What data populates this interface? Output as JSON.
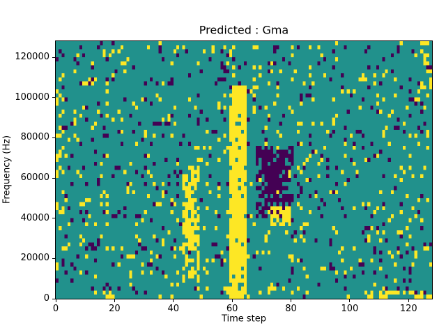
{
  "title": "Predicted : Gma",
  "xlabel": "Time step",
  "ylabel": "Frequency (Hz)",
  "xticks": [
    0,
    20,
    40,
    60,
    80,
    100,
    120
  ],
  "yticks": [
    0,
    20000,
    40000,
    60000,
    80000,
    100000,
    120000
  ],
  "chart_data": {
    "type": "heatmap",
    "title": "Predicted : Gma",
    "xlabel": "Time step",
    "ylabel": "Frequency (Hz)",
    "x_range": [
      0,
      128
    ],
    "y_range": [
      0,
      128000
    ],
    "grid": {
      "cols": 128,
      "rows": 64
    },
    "colors": {
      "background": "#21918c",
      "high": "#fde725",
      "low": "#440154"
    },
    "legend": "none",
    "grid_lines": false,
    "noise": {
      "seed": 7,
      "purple_density": 0.05,
      "yellow_density": 0.06
    },
    "regions": [
      {
        "x0": 59,
        "x1": 65,
        "y0": 1,
        "y1": 53,
        "value": "high",
        "density": 0.93
      },
      {
        "x0": 58,
        "x1": 66,
        "y0": 0,
        "y1": 3,
        "value": "high",
        "density": 0.4
      },
      {
        "x0": 43,
        "x1": 49,
        "y0": 4,
        "y1": 33,
        "value": "high",
        "density": 0.5
      },
      {
        "x0": 44,
        "x1": 47,
        "y0": 12,
        "y1": 30,
        "value": "high",
        "density": 0.6
      },
      {
        "x0": 68,
        "x1": 81,
        "y0": 20,
        "y1": 38,
        "value": "low",
        "density": 0.55
      },
      {
        "x0": 70,
        "x1": 78,
        "y0": 23,
        "y1": 36,
        "value": "low",
        "density": 0.6
      },
      {
        "x0": 73,
        "x1": 80,
        "y0": 18,
        "y1": 23,
        "value": "high",
        "density": 0.75
      },
      {
        "x0": 104,
        "x1": 128,
        "y0": 0,
        "y1": 2,
        "value": "high",
        "density": 0.45
      },
      {
        "x0": 8,
        "x1": 20,
        "y0": 0,
        "y1": 2,
        "value": "high",
        "density": 0.2
      },
      {
        "x0": 124,
        "x1": 128,
        "y0": 52,
        "y1": 64,
        "value": "high",
        "density": 0.3
      },
      {
        "x0": 0,
        "x1": 3,
        "y0": 20,
        "y1": 55,
        "value": "high",
        "density": 0.15
      },
      {
        "x0": 55,
        "x1": 60,
        "y0": 54,
        "y1": 62,
        "value": "low",
        "density": 0.2
      }
    ]
  }
}
